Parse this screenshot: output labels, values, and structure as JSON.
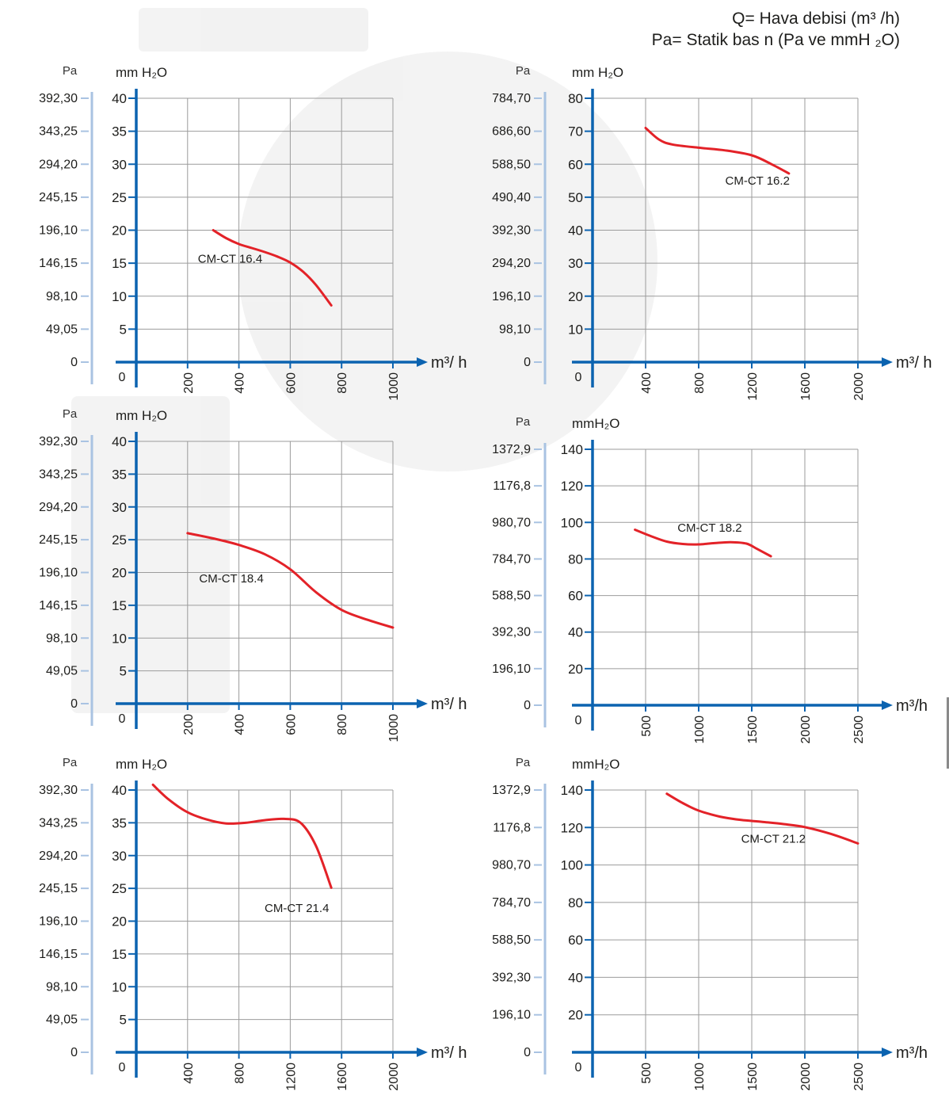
{
  "legend": {
    "line1": "Q= Hava debisi (m³ /h)",
    "line2": "Pa= Statik bas n   (Pa ve mmH ₂O)"
  },
  "colors": {
    "axis": "#0b63b0",
    "pa_axis": "#a9c3e2",
    "grid": "#9b9b9b",
    "curve": "#e32228",
    "text": "#1d1d1b"
  },
  "chart_data": [
    {
      "type": "line",
      "title": "",
      "pa_label": "Pa",
      "ylabel": "mm H₂O",
      "xlabel": "m³/ h",
      "x_ticks": [
        200,
        400,
        600,
        800,
        1000
      ],
      "x_tick_labels": [
        "200",
        "400",
        "600",
        "800",
        "1000"
      ],
      "xlim": [
        0,
        1000
      ],
      "y_ticks": [
        5,
        10,
        15,
        20,
        25,
        30,
        35,
        40
      ],
      "y_tick_labels": [
        "5",
        "10",
        "15",
        "20",
        "25",
        "30",
        "35",
        "40"
      ],
      "ylim": [
        0,
        40
      ],
      "pa_ticks": [
        "0",
        "49,05",
        "98,10",
        "146,15",
        "196,10",
        "245,15",
        "294,20",
        "343,25",
        "392,30"
      ],
      "series": [
        {
          "name": "CM-CT 16.4",
          "points": [
            [
              300,
              20
            ],
            [
              350,
              18.8
            ],
            [
              400,
              17.9
            ],
            [
              450,
              17.3
            ],
            [
              500,
              16.7
            ],
            [
              550,
              16
            ],
            [
              600,
              15.1
            ],
            [
              650,
              13.7
            ],
            [
              700,
              11.7
            ],
            [
              760,
              8.6
            ]
          ],
          "label_at": [
            240,
            15.7
          ]
        }
      ],
      "panel": "left",
      "row": 0
    },
    {
      "type": "line",
      "title": "",
      "pa_label": "Pa",
      "ylabel": "mm H₂O",
      "xlabel": "m³/ h",
      "x_ticks": [
        400,
        800,
        1200,
        1600,
        2000
      ],
      "x_tick_labels": [
        "400",
        "800",
        "1200",
        "1600",
        "2000"
      ],
      "xlim": [
        0,
        2000
      ],
      "y_ticks": [
        10,
        20,
        30,
        40,
        50,
        60,
        70,
        80
      ],
      "y_tick_labels": [
        "10",
        "20",
        "30",
        "40",
        "50",
        "60",
        "70",
        "80"
      ],
      "ylim": [
        0,
        80
      ],
      "pa_ticks": [
        "0",
        "98,10",
        "196,10",
        "294,20",
        "392,30",
        "490,40",
        "588,50",
        "686,60",
        "784,70"
      ],
      "series": [
        {
          "name": "CM-CT 16.2",
          "points": [
            [
              400,
              71
            ],
            [
              500,
              67.5
            ],
            [
              600,
              66
            ],
            [
              800,
              65
            ],
            [
              1000,
              64.2
            ],
            [
              1200,
              62.7
            ],
            [
              1350,
              60
            ],
            [
              1480,
              57.2
            ]
          ],
          "label_at": [
            1000,
            55
          ]
        }
      ],
      "panel": "right",
      "row": 0
    },
    {
      "type": "line",
      "title": "",
      "pa_label": "Pa",
      "ylabel": "mm H₂O",
      "xlabel": "m³/ h",
      "x_ticks": [
        200,
        400,
        600,
        800,
        1000
      ],
      "x_tick_labels": [
        "200",
        "400",
        "600",
        "800",
        "1000"
      ],
      "xlim": [
        0,
        1000
      ],
      "y_ticks": [
        5,
        10,
        15,
        20,
        25,
        30,
        35,
        40
      ],
      "y_tick_labels": [
        "5",
        "10",
        "15",
        "20",
        "25",
        "30",
        "35",
        "40"
      ],
      "ylim": [
        0,
        40
      ],
      "pa_ticks": [
        "0",
        "49,05",
        "98,10",
        "146,15",
        "196,10",
        "245,15",
        "294,20",
        "343,25",
        "392,30"
      ],
      "series": [
        {
          "name": "CM-CT 18.4",
          "points": [
            [
              200,
              26
            ],
            [
              300,
              25.2
            ],
            [
              400,
              24.2
            ],
            [
              500,
              22.8
            ],
            [
              600,
              20.5
            ],
            [
              700,
              17
            ],
            [
              800,
              14.3
            ],
            [
              900,
              12.8
            ],
            [
              1000,
              11.6
            ]
          ],
          "label_at": [
            245,
            19.1
          ]
        }
      ],
      "panel": "left",
      "row": 1
    },
    {
      "type": "line",
      "title": "",
      "pa_label": "Pa",
      "ylabel": "mmH₂O",
      "xlabel": "m³/h",
      "x_ticks": [
        500,
        1000,
        1500,
        2000,
        2500
      ],
      "x_tick_labels": [
        "500",
        "1000",
        "1500",
        "2000",
        "2500"
      ],
      "xlim": [
        0,
        2500
      ],
      "y_ticks": [
        20,
        40,
        60,
        80,
        100,
        120,
        140
      ],
      "y_tick_labels": [
        "20",
        "40",
        "60",
        "80",
        "100",
        "120",
        "140"
      ],
      "ylim": [
        0,
        140
      ],
      "pa_ticks": [
        "0",
        "196,10",
        "392,30",
        "588,50",
        "784,70",
        "980,70",
        "1176,8",
        "1372,9"
      ],
      "series": [
        {
          "name": "CM-CT 18.2",
          "points": [
            [
              400,
              96
            ],
            [
              550,
              92.5
            ],
            [
              700,
              89.5
            ],
            [
              850,
              88.2
            ],
            [
              1000,
              88
            ],
            [
              1150,
              88.7
            ],
            [
              1300,
              89.2
            ],
            [
              1450,
              88.4
            ],
            [
              1550,
              85.5
            ],
            [
              1680,
              81.5
            ]
          ],
          "label_at": [
            800,
            97
          ]
        }
      ],
      "panel": "right",
      "row": 1
    },
    {
      "type": "line",
      "title": "",
      "pa_label": "Pa",
      "ylabel": "mm H₂O",
      "xlabel": "m³/ h",
      "x_ticks": [
        400,
        800,
        1200,
        1600,
        2000
      ],
      "x_tick_labels": [
        "400",
        "800",
        "1200",
        "1600",
        "2000"
      ],
      "xlim": [
        0,
        2000
      ],
      "y_ticks": [
        5,
        10,
        15,
        20,
        25,
        30,
        35,
        40
      ],
      "y_tick_labels": [
        "5",
        "10",
        "15",
        "20",
        "25",
        "30",
        "35",
        "40"
      ],
      "ylim": [
        0,
        40
      ],
      "pa_ticks": [
        "0",
        "49,05",
        "98,10",
        "146,15",
        "196,10",
        "245,15",
        "294,20",
        "343,25",
        "392,30"
      ],
      "series": [
        {
          "name": "CM-CT 21.4",
          "points": [
            [
              130,
              40.8
            ],
            [
              250,
              38.6
            ],
            [
              400,
              36.6
            ],
            [
              550,
              35.5
            ],
            [
              700,
              34.9
            ],
            [
              850,
              35
            ],
            [
              1000,
              35.4
            ],
            [
              1150,
              35.6
            ],
            [
              1280,
              35
            ],
            [
              1400,
              31.5
            ],
            [
              1520,
              25.1
            ]
          ],
          "label_at": [
            1000,
            22
          ]
        }
      ],
      "panel": "left",
      "row": 2
    },
    {
      "type": "line",
      "title": "",
      "pa_label": "Pa",
      "ylabel": "mmH₂O",
      "xlabel": "m³/h",
      "x_ticks": [
        500,
        1000,
        1500,
        2000,
        2500
      ],
      "x_tick_labels": [
        "500",
        "1000",
        "1500",
        "2000",
        "2500"
      ],
      "xlim": [
        0,
        2500
      ],
      "y_ticks": [
        20,
        40,
        60,
        80,
        100,
        120,
        140
      ],
      "y_tick_labels": [
        "20",
        "40",
        "60",
        "80",
        "100",
        "120",
        "140"
      ],
      "ylim": [
        0,
        140
      ],
      "pa_ticks": [
        "0",
        "196,10",
        "392,30",
        "588,50",
        "784,70",
        "980,70",
        "1176,8",
        "1372,9"
      ],
      "series": [
        {
          "name": "CM-CT 21.2",
          "points": [
            [
              700,
              138
            ],
            [
              850,
              133
            ],
            [
              1000,
              129
            ],
            [
              1200,
              125.8
            ],
            [
              1400,
              124
            ],
            [
              1600,
              123
            ],
            [
              1800,
              121.8
            ],
            [
              2000,
              120.2
            ],
            [
              2250,
              116.5
            ],
            [
              2500,
              111.5
            ]
          ],
          "label_at": [
            1400,
            114
          ]
        }
      ],
      "panel": "right",
      "row": 2
    }
  ]
}
